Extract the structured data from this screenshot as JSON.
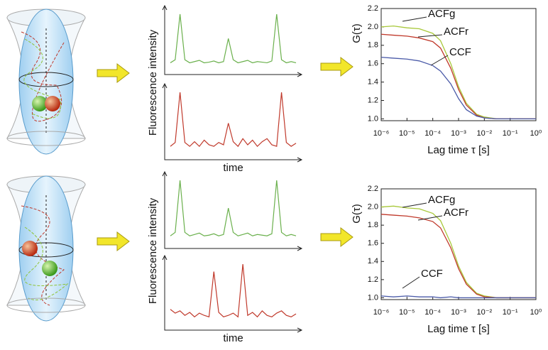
{
  "chart_data": [
    {
      "type": "trace",
      "ylabel": "Fluorescence intensity",
      "xlabel": "time",
      "series": [
        {
          "color": "#6ab04c",
          "values": [
            1,
            1.5,
            9,
            1.5,
            1,
            1.2,
            1.4,
            1,
            1.1,
            1.3,
            1,
            1.2,
            5,
            1.5,
            1,
            1.2,
            1.4,
            1,
            1.2,
            1.1,
            1,
            1.3,
            9,
            1.5,
            1,
            1.2,
            1
          ]
        },
        {
          "color": "#c0392b",
          "values": [
            1,
            1.5,
            8,
            1.5,
            1,
            1.6,
            1,
            1.8,
            1.2,
            1,
            1.5,
            1.2,
            4,
            1.6,
            1,
            2,
            1.2,
            1.8,
            1,
            1.6,
            2,
            1.2,
            1,
            8,
            1.5,
            1,
            1.4
          ]
        }
      ]
    },
    {
      "type": "line",
      "ylabel": "G(τ)",
      "xlabel": "Lag time τ [s]",
      "log_x": true,
      "x": [
        1e-06,
        3e-06,
        1e-05,
        3e-05,
        0.0001,
        0.0002,
        0.0005,
        0.001,
        0.002,
        0.005,
        0.01,
        0.03,
        0.1,
        1
      ],
      "series": [
        {
          "name": "ACFg",
          "color": "#a8c83a",
          "values": [
            2.0,
            2.01,
            1.99,
            1.98,
            1.93,
            1.85,
            1.6,
            1.35,
            1.17,
            1.05,
            1.02,
            1.0,
            1.0,
            1.0
          ]
        },
        {
          "name": "ACFr",
          "color": "#c0392b",
          "values": [
            1.92,
            1.91,
            1.9,
            1.88,
            1.84,
            1.77,
            1.55,
            1.32,
            1.15,
            1.04,
            1.01,
            1.0,
            1.0,
            1.0
          ]
        },
        {
          "name": "CCF",
          "color": "#4a5aa8",
          "values": [
            1.67,
            1.66,
            1.65,
            1.63,
            1.58,
            1.52,
            1.38,
            1.22,
            1.1,
            1.03,
            1.01,
            1.0,
            1.0,
            1.0
          ]
        }
      ],
      "xlim": [
        1e-06,
        1
      ],
      "xticks": [
        {
          "value": 1e-06,
          "label": "10⁻⁶"
        },
        {
          "value": 1e-05,
          "label": "10⁻⁵"
        },
        {
          "value": 0.0001,
          "label": "10⁻⁴"
        },
        {
          "value": 0.001,
          "label": "10⁻³"
        },
        {
          "value": 0.01,
          "label": "10⁻²"
        },
        {
          "value": 0.1,
          "label": "10⁻¹"
        },
        {
          "value": 1,
          "label": "10⁰"
        }
      ],
      "ylim": [
        0.98,
        2.2
      ],
      "yticks": [
        {
          "value": 1,
          "label": "1.0"
        },
        {
          "value": 1.2,
          "label": "1.2"
        },
        {
          "value": 1.4,
          "label": "1.4"
        },
        {
          "value": 1.6,
          "label": "1.6"
        },
        {
          "value": 1.8,
          "label": "1.8"
        },
        {
          "value": 2,
          "label": "2.0"
        },
        {
          "value": 2.2,
          "label": "2.2"
        }
      ]
    },
    {
      "type": "trace",
      "ylabel": "Fluorescence intensity",
      "xlabel": "time",
      "series": [
        {
          "color": "#6ab04c",
          "values": [
            1,
            1.5,
            9,
            1.5,
            1,
            1.2,
            1.4,
            1,
            1.1,
            1.3,
            1,
            1.2,
            5,
            1.5,
            1,
            1.2,
            1.4,
            1,
            1.2,
            1.1,
            1,
            1.3,
            9,
            1.5,
            1,
            1.2,
            1
          ]
        },
        {
          "color": "#c0392b",
          "values": [
            2,
            1.5,
            1.8,
            1.2,
            1.6,
            1,
            1.5,
            1.2,
            1,
            7,
            1.6,
            1,
            1.2,
            1.5,
            1,
            8,
            1.2,
            1.6,
            1,
            1.8,
            1.2,
            1,
            1.5,
            1.8,
            1.2,
            1,
            1.4
          ]
        }
      ]
    },
    {
      "type": "line",
      "ylabel": "G(τ)",
      "xlabel": "Lag time τ [s]",
      "log_x": true,
      "x": [
        1e-06,
        3e-06,
        1e-05,
        3e-05,
        0.0001,
        0.0002,
        0.0005,
        0.001,
        0.002,
        0.005,
        0.01,
        0.03,
        0.1,
        1
      ],
      "series": [
        {
          "name": "ACFg",
          "color": "#a8c83a",
          "values": [
            2.0,
            2.01,
            1.99,
            1.98,
            1.93,
            1.85,
            1.6,
            1.35,
            1.17,
            1.05,
            1.02,
            1.0,
            1.0,
            1.0
          ]
        },
        {
          "name": "ACFr",
          "color": "#c0392b",
          "values": [
            1.92,
            1.91,
            1.9,
            1.88,
            1.84,
            1.77,
            1.55,
            1.32,
            1.15,
            1.04,
            1.01,
            1.0,
            1.0,
            1.0
          ]
        },
        {
          "name": "CCF",
          "color": "#4a5aa8",
          "values": [
            1.02,
            1.01,
            1.02,
            1.01,
            1.01,
            1.0,
            1.01,
            1.0,
            1.0,
            1.0,
            1.0,
            1.0,
            1.0,
            1.0
          ]
        }
      ],
      "xlim": [
        1e-06,
        1
      ],
      "xticks": [
        {
          "value": 1e-06,
          "label": "10⁻⁶"
        },
        {
          "value": 1e-05,
          "label": "10⁻⁵"
        },
        {
          "value": 0.0001,
          "label": "10⁻⁴"
        },
        {
          "value": 0.001,
          "label": "10⁻³"
        },
        {
          "value": 0.01,
          "label": "10⁻²"
        },
        {
          "value": 0.1,
          "label": "10⁻¹"
        },
        {
          "value": 1,
          "label": "10⁰"
        }
      ],
      "ylim": [
        0.98,
        2.2
      ],
      "yticks": [
        {
          "value": 1,
          "label": "1.0"
        },
        {
          "value": 1.2,
          "label": "1.2"
        },
        {
          "value": 1.4,
          "label": "1.4"
        },
        {
          "value": 1.6,
          "label": "1.6"
        },
        {
          "value": 1.8,
          "label": "1.8"
        },
        {
          "value": 2,
          "label": "2.0"
        },
        {
          "value": 2.2,
          "label": "2.2"
        }
      ]
    }
  ]
}
